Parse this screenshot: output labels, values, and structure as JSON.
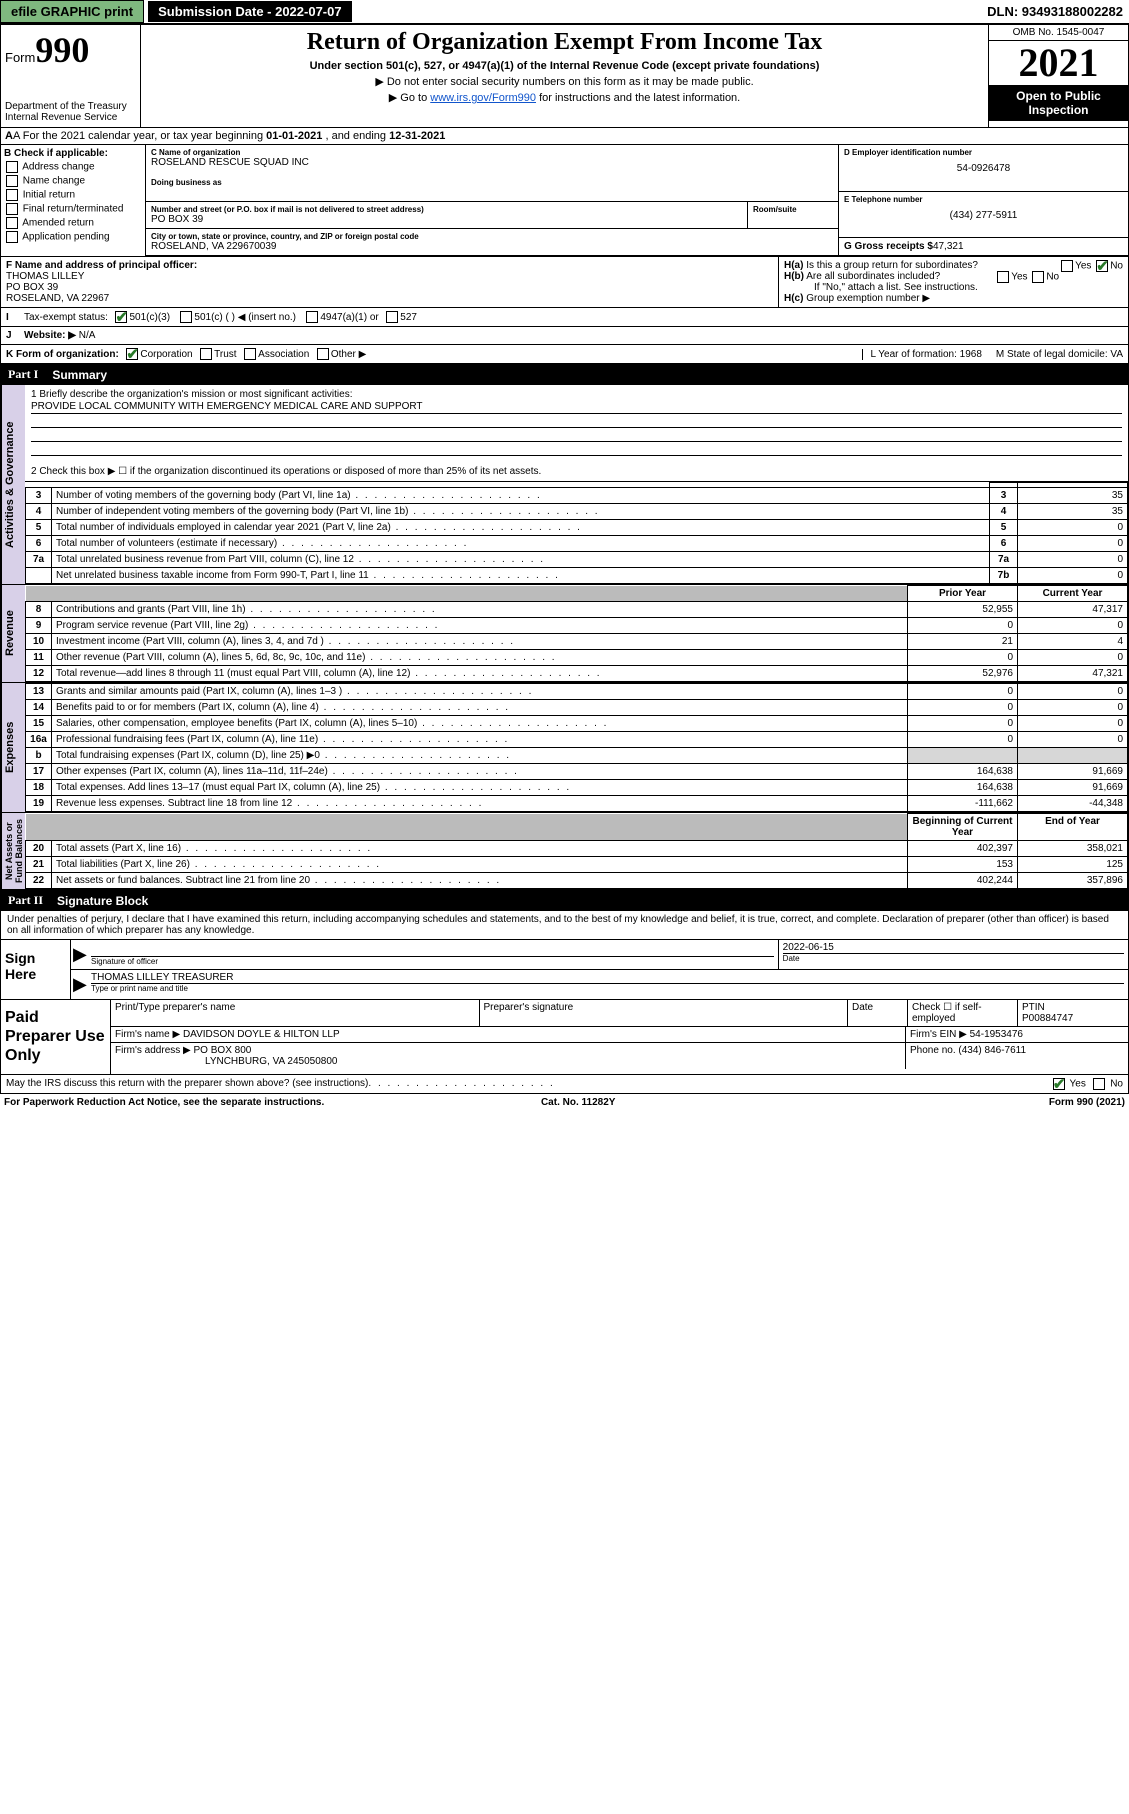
{
  "topbar": {
    "efile": "efile GRAPHIC print",
    "submission": "Submission Date - 2022-07-07",
    "dln": "DLN: 93493188002282"
  },
  "header": {
    "form_label": "Form",
    "form_number": "990",
    "title": "Return of Organization Exempt From Income Tax",
    "subtitle": "Under section 501(c), 527, or 4947(a)(1) of the Internal Revenue Code (except private foundations)",
    "note1": "▶ Do not enter social security numbers on this form as it may be made public.",
    "note2_pre": "▶ Go to ",
    "note2_link": "www.irs.gov/Form990",
    "note2_post": " for instructions and the latest information.",
    "dept": "Department of the Treasury\nInternal Revenue Service",
    "omb": "OMB No. 1545-0047",
    "year": "2021",
    "open": "Open to Public Inspection"
  },
  "rowA": {
    "text_pre": "A For the 2021 calendar year, or tax year beginning ",
    "begin": "01-01-2021",
    "mid": " , and ending ",
    "end": "12-31-2021"
  },
  "colB": {
    "label": "B Check if applicable:",
    "items": [
      "Address change",
      "Name change",
      "Initial return",
      "Final return/terminated",
      "Amended return",
      "Application pending"
    ]
  },
  "colC": {
    "name_lbl": "C Name of organization",
    "name": "ROSELAND RESCUE SQUAD INC",
    "dba_lbl": "Doing business as",
    "street_lbl": "Number and street (or P.O. box if mail is not delivered to street address)",
    "room_lbl": "Room/suite",
    "street": "PO BOX 39",
    "city_lbl": "City or town, state or province, country, and ZIP or foreign postal code",
    "city": "ROSELAND, VA  229670039"
  },
  "colD": {
    "ein_lbl": "D Employer identification number",
    "ein": "54-0926478",
    "tel_lbl": "E Telephone number",
    "tel": "(434) 277-5911",
    "gross_lbl": "G Gross receipts $",
    "gross": "47,321"
  },
  "rowF": {
    "lbl": "F Name and address of principal officer:",
    "name": "THOMAS LILLEY",
    "addr1": "PO BOX 39",
    "addr2": "ROSELAND, VA  22967"
  },
  "rowH": {
    "ha": "H(a)  Is this a group return for subordinates?",
    "hb": "H(b)  Are all subordinates included?",
    "hb_note": "If \"No,\" attach a list. See instructions.",
    "hc": "H(c)  Group exemption number ▶"
  },
  "rowI": {
    "lbl": "Tax-exempt status:",
    "opts": [
      "501(c)(3)",
      "501(c) (  ) ◀ (insert no.)",
      "4947(a)(1) or",
      "527"
    ]
  },
  "rowJ": {
    "lbl": "Website: ▶",
    "val": "N/A"
  },
  "rowK": {
    "lbl": "K Form of organization:",
    "opts": [
      "Corporation",
      "Trust",
      "Association",
      "Other ▶"
    ],
    "L": "L Year of formation: 1968",
    "M": "M State of legal domicile: VA"
  },
  "partI": {
    "title": "Part I",
    "heading": "Summary",
    "line1_lbl": "1  Briefly describe the organization's mission or most significant activities:",
    "mission": "PROVIDE LOCAL COMMUNITY WITH EMERGENCY MEDICAL CARE AND SUPPORT",
    "line2": "2  Check this box ▶ ☐  if the organization discontinued its operations or disposed of more than 25% of its net assets.",
    "gov_rows": [
      {
        "n": "3",
        "d": "Number of voting members of the governing body (Part VI, line 1a)",
        "b": "3",
        "v": "35"
      },
      {
        "n": "4",
        "d": "Number of independent voting members of the governing body (Part VI, line 1b)",
        "b": "4",
        "v": "35"
      },
      {
        "n": "5",
        "d": "Total number of individuals employed in calendar year 2021 (Part V, line 2a)",
        "b": "5",
        "v": "0"
      },
      {
        "n": "6",
        "d": "Total number of volunteers (estimate if necessary)",
        "b": "6",
        "v": "0"
      },
      {
        "n": "7a",
        "d": "Total unrelated business revenue from Part VIII, column (C), line 12",
        "b": "7a",
        "v": "0"
      },
      {
        "n": "",
        "d": "Net unrelated business taxable income from Form 990-T, Part I, line 11",
        "b": "7b",
        "v": "0"
      }
    ],
    "col_prior": "Prior Year",
    "col_curr": "Current Year",
    "rev_rows": [
      {
        "n": "8",
        "d": "Contributions and grants (Part VIII, line 1h)",
        "p": "52,955",
        "c": "47,317"
      },
      {
        "n": "9",
        "d": "Program service revenue (Part VIII, line 2g)",
        "p": "0",
        "c": "0"
      },
      {
        "n": "10",
        "d": "Investment income (Part VIII, column (A), lines 3, 4, and 7d )",
        "p": "21",
        "c": "4"
      },
      {
        "n": "11",
        "d": "Other revenue (Part VIII, column (A), lines 5, 6d, 8c, 9c, 10c, and 11e)",
        "p": "0",
        "c": "0"
      },
      {
        "n": "12",
        "d": "Total revenue—add lines 8 through 11 (must equal Part VIII, column (A), line 12)",
        "p": "52,976",
        "c": "47,321"
      }
    ],
    "exp_rows": [
      {
        "n": "13",
        "d": "Grants and similar amounts paid (Part IX, column (A), lines 1–3 )",
        "p": "0",
        "c": "0"
      },
      {
        "n": "14",
        "d": "Benefits paid to or for members (Part IX, column (A), line 4)",
        "p": "0",
        "c": "0"
      },
      {
        "n": "15",
        "d": "Salaries, other compensation, employee benefits (Part IX, column (A), lines 5–10)",
        "p": "0",
        "c": "0"
      },
      {
        "n": "16a",
        "d": "Professional fundraising fees (Part IX, column (A), line 11e)",
        "p": "0",
        "c": "0"
      },
      {
        "n": "b",
        "d": "Total fundraising expenses (Part IX, column (D), line 25) ▶0",
        "p": "",
        "c": "",
        "shade": true
      },
      {
        "n": "17",
        "d": "Other expenses (Part IX, column (A), lines 11a–11d, 11f–24e)",
        "p": "164,638",
        "c": "91,669"
      },
      {
        "n": "18",
        "d": "Total expenses. Add lines 13–17 (must equal Part IX, column (A), line 25)",
        "p": "164,638",
        "c": "91,669"
      },
      {
        "n": "19",
        "d": "Revenue less expenses. Subtract line 18 from line 12",
        "p": "-111,662",
        "c": "-44,348"
      }
    ],
    "col_begin": "Beginning of Current Year",
    "col_end": "End of Year",
    "net_rows": [
      {
        "n": "20",
        "d": "Total assets (Part X, line 16)",
        "p": "402,397",
        "c": "358,021"
      },
      {
        "n": "21",
        "d": "Total liabilities (Part X, line 26)",
        "p": "153",
        "c": "125"
      },
      {
        "n": "22",
        "d": "Net assets or fund balances. Subtract line 21 from line 20",
        "p": "402,244",
        "c": "357,896"
      }
    ]
  },
  "vtabs": {
    "gov": "Activities & Governance",
    "rev": "Revenue",
    "exp": "Expenses",
    "net": "Net Assets or\nFund Balances"
  },
  "partII": {
    "title": "Part II",
    "heading": "Signature Block",
    "decl": "Under penalties of perjury, I declare that I have examined this return, including accompanying schedules and statements, and to the best of my knowledge and belief, it is true, correct, and complete. Declaration of preparer (other than officer) is based on all information of which preparer has any knowledge."
  },
  "sign": {
    "here": "Sign Here",
    "sig_lbl": "Signature of officer",
    "date_lbl": "Date",
    "date": "2022-06-15",
    "name": "THOMAS LILLEY TREASURER",
    "name_lbl": "Type or print name and title"
  },
  "paid": {
    "title": "Paid Preparer Use Only",
    "col1": "Print/Type preparer's name",
    "col2": "Preparer's signature",
    "col3": "Date",
    "check_lbl": "Check ☐ if self-employed",
    "ptin_lbl": "PTIN",
    "ptin": "P00884747",
    "firm_lbl": "Firm's name   ▶",
    "firm": "DAVIDSON DOYLE & HILTON LLP",
    "ein_lbl": "Firm's EIN ▶",
    "ein": "54-1953476",
    "addr_lbl": "Firm's address ▶",
    "addr1": "PO BOX 800",
    "addr2": "LYNCHBURG, VA  245050800",
    "phone_lbl": "Phone no.",
    "phone": "(434) 846-7611"
  },
  "discuss": {
    "q": "May the IRS discuss this return with the preparer shown above? (see instructions)",
    "yes": "Yes",
    "no": "No"
  },
  "footer": {
    "l": "For Paperwork Reduction Act Notice, see the separate instructions.",
    "m": "Cat. No. 11282Y",
    "r": "Form 990 (2021)"
  }
}
